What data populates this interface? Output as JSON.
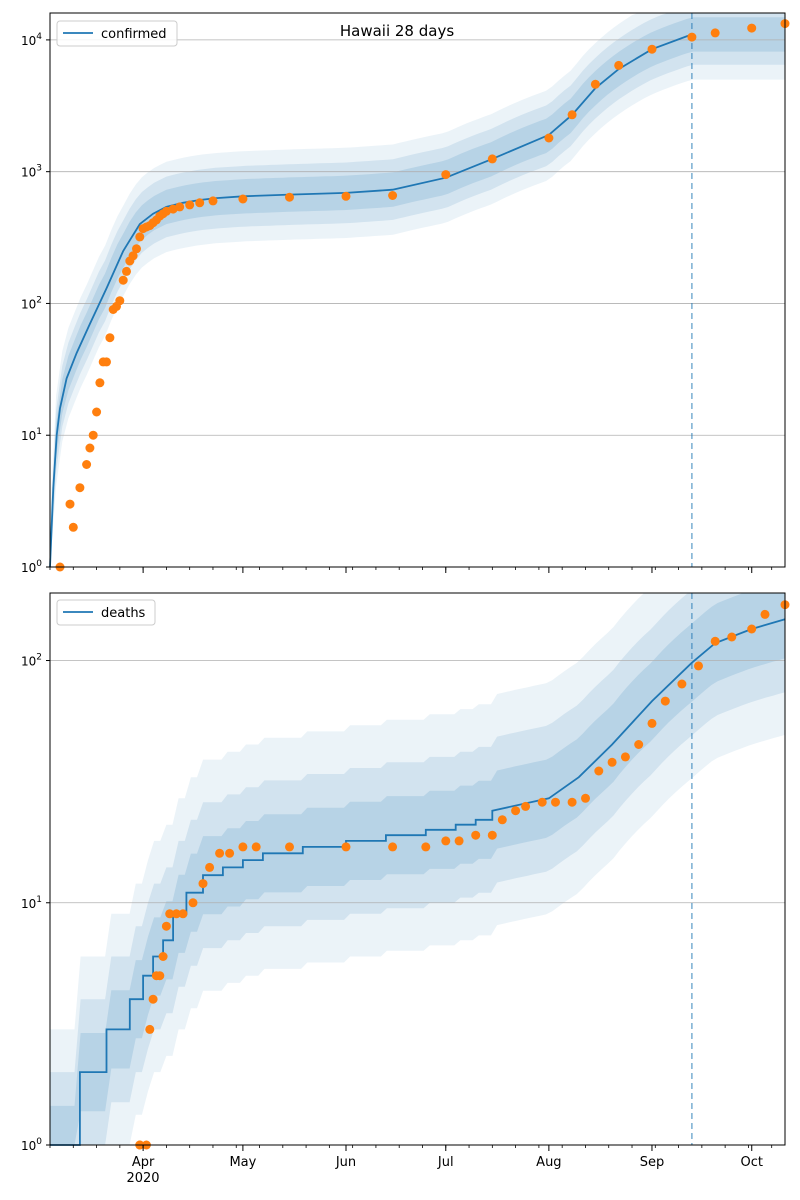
{
  "figure": {
    "title": "Hawaii 28 days"
  },
  "colors": {
    "model": "#1f77b4",
    "observed": "#ff7f0e",
    "band": "#1f77b4",
    "grid": "#b0b0b0",
    "forecast_line": "#1f77b4"
  },
  "x_axis": {
    "tick_labels": [
      "Apr",
      "May",
      "Jun",
      "Jul",
      "Aug",
      "Sep",
      "Oct"
    ],
    "tick_dates": [
      "2020-04-01",
      "2020-05-01",
      "2020-06-01",
      "2020-07-01",
      "2020-08-01",
      "2020-09-01",
      "2020-10-01"
    ],
    "year_label": "2020",
    "range": [
      "2020-03-04",
      "2020-10-11"
    ]
  },
  "chart_data": [
    {
      "type": "line",
      "legend": "confirmed",
      "legend_position": "top-left",
      "yscale": "log",
      "ylim": [
        1,
        16000
      ],
      "yticks": [
        1,
        10,
        100,
        1000,
        10000
      ],
      "ytick_labels": [
        "10^0",
        "10^1",
        "10^2",
        "10^3",
        "10^4"
      ],
      "grid": "y",
      "forecast_start": "2020-09-13",
      "model": {
        "x": [
          "2020-03-04",
          "2020-03-05",
          "2020-03-06",
          "2020-03-07",
          "2020-03-09",
          "2020-03-12",
          "2020-03-16",
          "2020-03-21",
          "2020-03-26",
          "2020-03-31",
          "2020-04-04",
          "2020-04-08",
          "2020-04-13",
          "2020-04-18",
          "2020-04-23",
          "2020-05-01",
          "2020-05-15",
          "2020-06-01",
          "2020-06-15",
          "2020-07-01",
          "2020-07-15",
          "2020-08-01",
          "2020-08-08",
          "2020-08-15",
          "2020-08-22",
          "2020-09-01",
          "2020-09-13"
        ],
        "y": [
          1,
          4,
          10,
          16,
          27,
          42,
          70,
          130,
          250,
          400,
          480,
          540,
          580,
          610,
          630,
          650,
          670,
          690,
          730,
          900,
          1250,
          1900,
          2700,
          4300,
          6000,
          8500,
          11000
        ]
      },
      "observed": {
        "x": [
          "2020-03-07",
          "2020-03-10",
          "2020-03-11",
          "2020-03-13",
          "2020-03-15",
          "2020-03-16",
          "2020-03-17",
          "2020-03-18",
          "2020-03-19",
          "2020-03-20",
          "2020-03-21",
          "2020-03-22",
          "2020-03-23",
          "2020-03-24",
          "2020-03-25",
          "2020-03-26",
          "2020-03-27",
          "2020-03-28",
          "2020-03-29",
          "2020-03-30",
          "2020-03-31",
          "2020-04-01",
          "2020-04-02",
          "2020-04-03",
          "2020-04-04",
          "2020-04-05",
          "2020-04-06",
          "2020-04-07",
          "2020-04-08",
          "2020-04-10",
          "2020-04-12",
          "2020-04-15",
          "2020-04-18",
          "2020-04-22",
          "2020-05-01",
          "2020-05-15",
          "2020-06-01",
          "2020-06-15",
          "2020-07-01",
          "2020-07-15",
          "2020-08-01",
          "2020-08-08",
          "2020-08-15",
          "2020-08-22",
          "2020-09-01",
          "2020-09-13",
          "2020-09-20",
          "2020-10-01",
          "2020-10-11"
        ],
        "y": [
          1,
          3,
          2,
          4,
          6,
          8,
          10,
          15,
          25,
          36,
          36,
          55,
          90,
          95,
          105,
          150,
          175,
          210,
          230,
          260,
          320,
          370,
          380,
          390,
          410,
          430,
          460,
          480,
          500,
          520,
          540,
          560,
          580,
          600,
          620,
          640,
          650,
          660,
          950,
          1250,
          1800,
          2700,
          4600,
          6400,
          8500,
          10500,
          11300,
          12300,
          13300
        ]
      }
    },
    {
      "type": "line",
      "legend": "deaths",
      "legend_position": "top-left",
      "yscale": "log",
      "ylim": [
        1,
        190
      ],
      "yticks": [
        1,
        10,
        100
      ],
      "ytick_labels": [
        "10^0",
        "10^1",
        "10^2"
      ],
      "grid": "y",
      "forecast_start": "2020-09-13",
      "model": {
        "x": [
          "2020-03-04",
          "2020-03-13",
          "2020-03-13",
          "2020-03-21",
          "2020-03-21",
          "2020-03-28",
          "2020-03-28",
          "2020-04-01",
          "2020-04-01",
          "2020-04-04",
          "2020-04-04",
          "2020-04-07",
          "2020-04-07",
          "2020-04-10",
          "2020-04-10",
          "2020-04-14",
          "2020-04-14",
          "2020-04-19",
          "2020-04-19",
          "2020-04-25",
          "2020-04-25",
          "2020-05-01",
          "2020-05-01",
          "2020-05-07",
          "2020-05-07",
          "2020-05-19",
          "2020-05-19",
          "2020-06-01",
          "2020-06-01",
          "2020-06-13",
          "2020-06-13",
          "2020-06-25",
          "2020-06-25",
          "2020-07-04",
          "2020-07-04",
          "2020-07-10",
          "2020-07-10",
          "2020-07-15",
          "2020-07-15",
          "2020-08-01",
          "2020-08-10",
          "2020-08-20",
          "2020-09-01",
          "2020-09-13",
          "2020-09-20",
          "2020-10-01",
          "2020-10-11"
        ],
        "y": [
          1,
          1,
          2,
          2,
          3,
          3,
          4,
          4,
          5,
          5,
          6,
          6,
          7,
          7,
          9,
          9,
          11,
          11,
          13,
          13,
          14,
          14,
          15,
          15,
          16,
          16,
          17,
          17,
          18,
          18,
          19,
          19,
          20,
          20,
          21,
          21,
          22,
          22,
          24,
          27,
          33,
          45,
          68,
          98,
          118,
          135,
          148
        ]
      },
      "observed": {
        "x": [
          "2020-03-31",
          "2020-03-31",
          "2020-04-02",
          "2020-04-03",
          "2020-04-04",
          "2020-04-05",
          "2020-04-06",
          "2020-04-07",
          "2020-04-08",
          "2020-04-09",
          "2020-04-11",
          "2020-04-13",
          "2020-04-16",
          "2020-04-19",
          "2020-04-21",
          "2020-04-24",
          "2020-04-27",
          "2020-05-01",
          "2020-05-05",
          "2020-05-15",
          "2020-06-01",
          "2020-06-15",
          "2020-06-25",
          "2020-07-01",
          "2020-07-05",
          "2020-07-10",
          "2020-07-15",
          "2020-07-18",
          "2020-07-22",
          "2020-07-25",
          "2020-07-30",
          "2020-08-03",
          "2020-08-08",
          "2020-08-12",
          "2020-08-16",
          "2020-08-20",
          "2020-08-24",
          "2020-08-28",
          "2020-09-01",
          "2020-09-05",
          "2020-09-10",
          "2020-09-15",
          "2020-09-20",
          "2020-09-25",
          "2020-10-01",
          "2020-10-05",
          "2020-10-11"
        ],
        "y": [
          1,
          1,
          1,
          3,
          4,
          5,
          5,
          6,
          8,
          9,
          9,
          9,
          10,
          12,
          14,
          16,
          16,
          17,
          17,
          17,
          17,
          17,
          17,
          18,
          18,
          19,
          19,
          22,
          24,
          25,
          26,
          26,
          26,
          27,
          35,
          38,
          40,
          45,
          55,
          68,
          80,
          95,
          120,
          125,
          135,
          155,
          170
        ]
      }
    }
  ]
}
